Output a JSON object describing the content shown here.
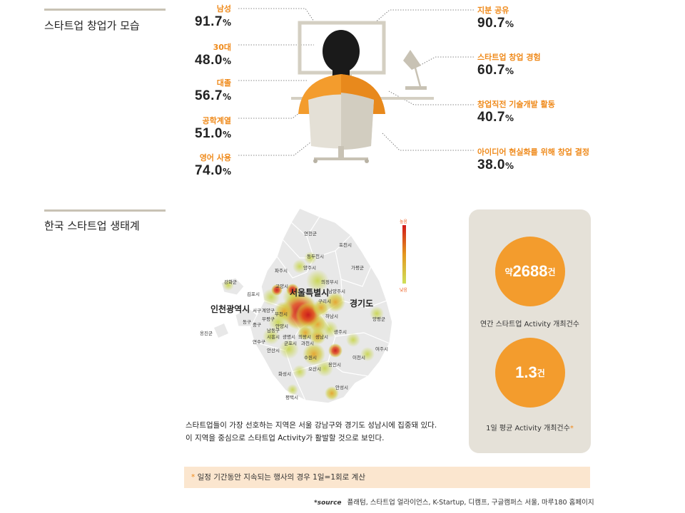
{
  "section1": {
    "title": "스타트업 창업가 모습",
    "left_stats": [
      {
        "label": "남성",
        "value": "91.7",
        "unit": "%"
      },
      {
        "label": "30대",
        "value": "48.0",
        "unit": "%"
      },
      {
        "label": "대졸",
        "value": "56.7",
        "unit": "%"
      },
      {
        "label": "공학계열",
        "value": "51.0",
        "unit": "%"
      },
      {
        "label": "영어 사용",
        "value": "74.0",
        "unit": "%"
      }
    ],
    "right_stats": [
      {
        "label": "지분 공유",
        "value": "90.7",
        "unit": "%"
      },
      {
        "label": "스타트업 창업 경험",
        "value": "60.7",
        "unit": "%"
      },
      {
        "label": "창업직전 기술개발 활동",
        "value": "40.7",
        "unit": "%"
      },
      {
        "label": "아이디어 현실화를 위해 창업 결정",
        "value": "38.0",
        "unit": "%"
      }
    ]
  },
  "section2": {
    "title": "한국 스타트업 생태계",
    "legend_high": "높음",
    "legend_low": "낮음",
    "map_regions": {
      "incheon": "인천광역시",
      "seoul": "서울특별시",
      "gyeonggi": "경기도"
    },
    "map_cities": [
      "연천군",
      "포천시",
      "동두천시",
      "양주시",
      "가평군",
      "파주시",
      "의정부시",
      "강화군",
      "고양시",
      "남양주시",
      "김포시",
      "구리시",
      "서구",
      "계양구",
      "부천시",
      "하남시",
      "양평군",
      "동구",
      "중구",
      "부평구",
      "남동구",
      "안양시",
      "광명시",
      "의왕시",
      "성남시",
      "광주시",
      "옹진군",
      "연수구",
      "시흥시",
      "군포시",
      "과천시",
      "안산시",
      "수원시",
      "이천시",
      "여주시",
      "오산시",
      "용인시",
      "화성시",
      "안성시",
      "평택시"
    ],
    "description": "스타트업들이 가장 선호하는 지역은 서울 강남구와 경기도 성남시에 집중돼 있다. 이 지역을 중심으로 스타트업 Activity가 활발할 것으로 보인다.",
    "panel": {
      "stat1_prefix": "약",
      "stat1_value": "2688",
      "stat1_unit": "건",
      "stat1_caption": "연간 스타트업 Activity 개최건수",
      "stat2_value": "1.3",
      "stat2_unit": "건",
      "stat2_caption": "1일 평균 Activity 개최건수",
      "stat2_star": "*"
    },
    "note_star": "*",
    "note": "일정 기간동안 지속되는 행사의 경우 1일=1회로 계산",
    "source_label": "*source",
    "source_text": "플래텀, 스타트업 얼라이언스, K-Startup, 디캠프, 구글캠퍼스 서울, 마루180 홈페이지"
  },
  "colors": {
    "accent": "#ef8a1b",
    "panel_bg": "#e5e1d8",
    "note_bg": "#fbe6cf",
    "bar": "#c8c2b4"
  }
}
